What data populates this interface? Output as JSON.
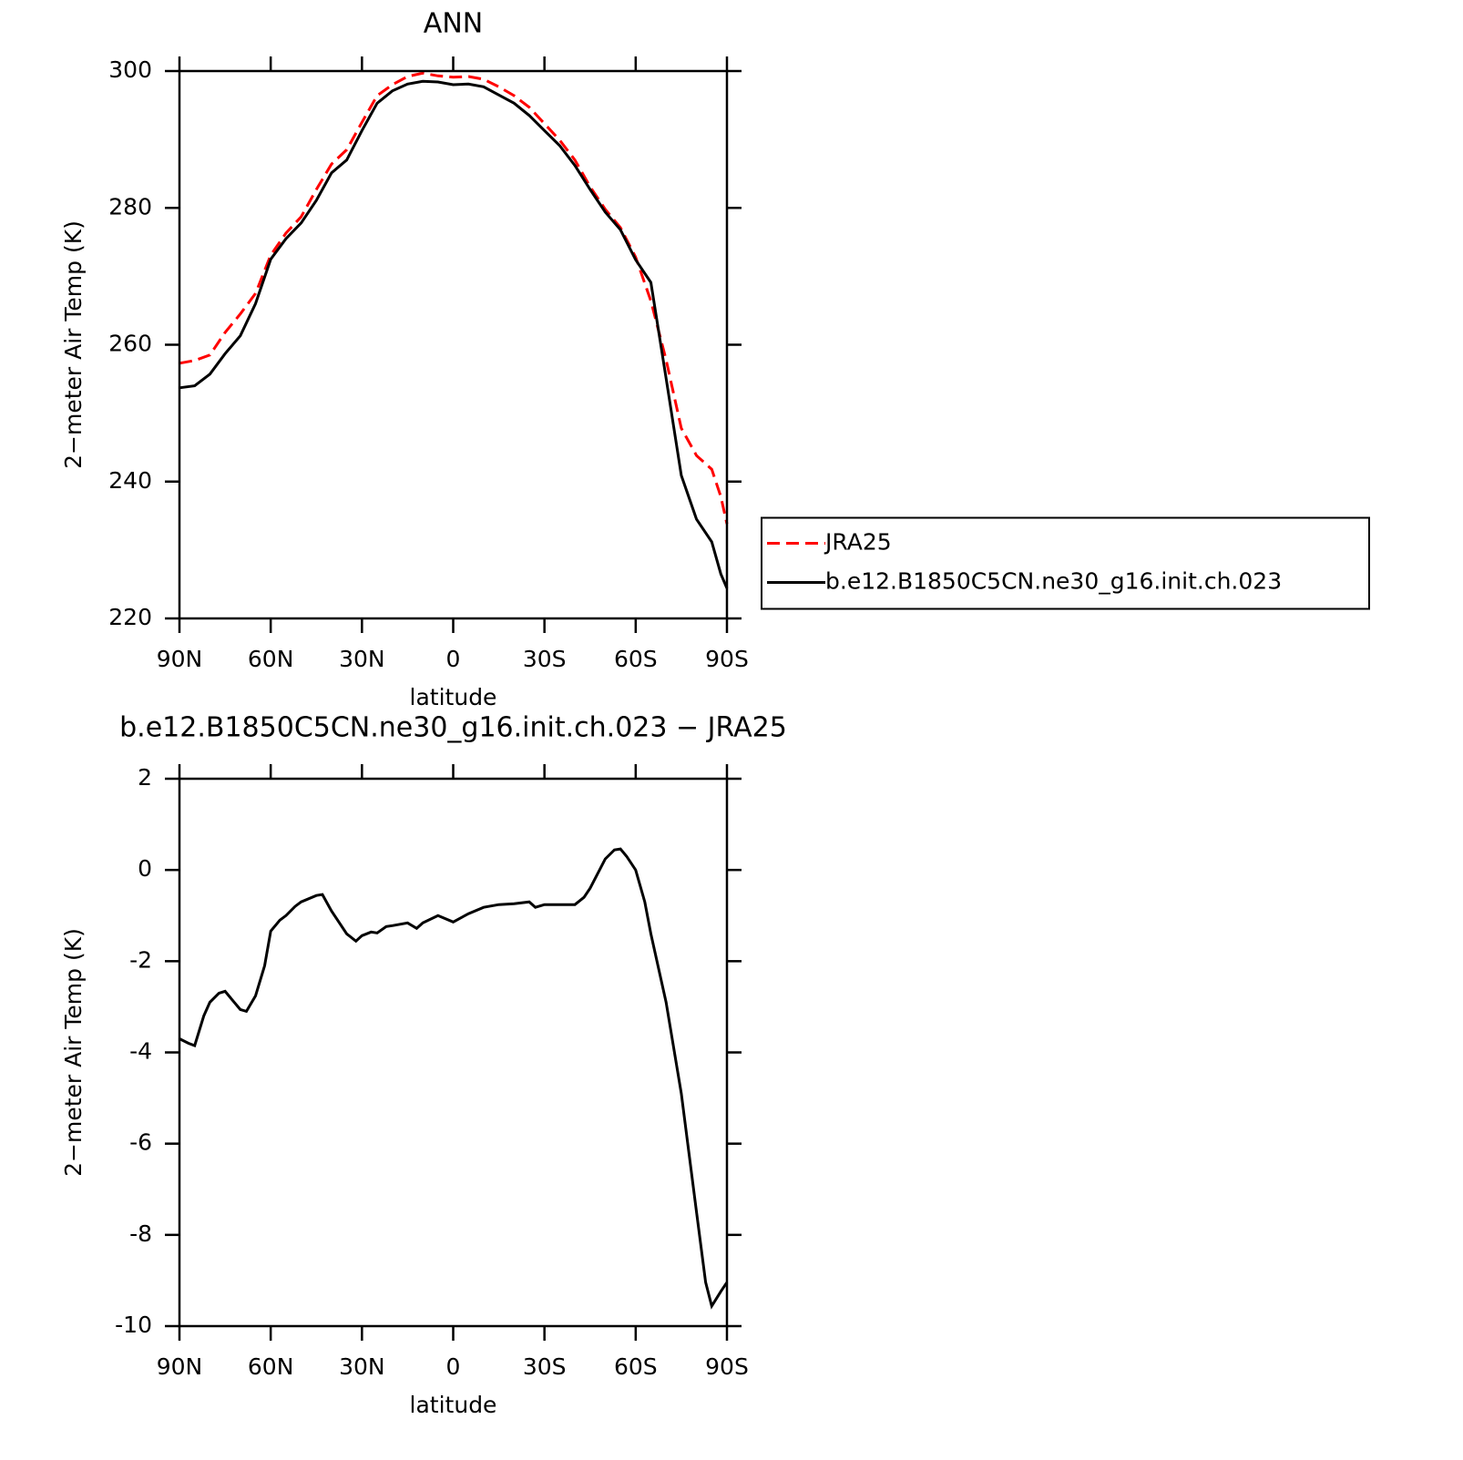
{
  "chart_data": [
    {
      "type": "line",
      "title": "ANN",
      "xlabel": "latitude",
      "ylabel": "2−meter Air Temp (K)",
      "x": [
        90,
        85,
        80,
        75,
        70,
        65,
        60,
        55,
        50,
        45,
        40,
        35,
        30,
        25,
        20,
        15,
        10,
        5,
        0,
        -5,
        -10,
        -15,
        -20,
        -25,
        -30,
        -35,
        -40,
        -45,
        -50,
        -55,
        -60,
        -65,
        -70,
        -75,
        -80,
        -85,
        -88,
        -90
      ],
      "series": [
        {
          "name": "JRA25",
          "color": "#ff0000",
          "dash": "dashed",
          "values": [
            257.3,
            257.7,
            258.5,
            261.8,
            264.5,
            267.5,
            273.1,
            276.3,
            278.7,
            282.7,
            286.4,
            288.5,
            292.5,
            296.4,
            298.0,
            299.2,
            299.7,
            299.3,
            299.1,
            299.2,
            298.8,
            297.7,
            296.4,
            294.7,
            292.3,
            289.9,
            287.0,
            283.1,
            279.8,
            277.1,
            272.8,
            266.4,
            257.8,
            247.8,
            243.8,
            241.8,
            237.8,
            233.8
          ]
        },
        {
          "name": "b.e12.B1850C5CN.ne30_g16.init.ch.023",
          "color": "#000000",
          "dash": "solid",
          "values": [
            253.7,
            254.0,
            255.7,
            258.7,
            261.3,
            266.0,
            272.5,
            275.5,
            277.8,
            281.1,
            285.1,
            287.0,
            291.3,
            295.3,
            297.1,
            298.1,
            298.5,
            298.4,
            298.0,
            298.1,
            297.7,
            296.5,
            295.3,
            293.5,
            291.3,
            289.1,
            286.2,
            282.7,
            279.4,
            276.8,
            272.4,
            269.1,
            255.1,
            240.9,
            234.5,
            231.2,
            226.5,
            224.4
          ]
        }
      ],
      "xlim": [
        90,
        -90
      ],
      "xticks": [
        {
          "value": 90,
          "label": "90N"
        },
        {
          "value": 60,
          "label": "60N"
        },
        {
          "value": 30,
          "label": "30N"
        },
        0,
        {
          "value": -30,
          "label": "30S"
        },
        {
          "value": -60,
          "label": "60S"
        },
        {
          "value": -90,
          "label": "90S"
        }
      ],
      "ylim": [
        220,
        300
      ],
      "yticks": [
        220,
        240,
        260,
        280,
        300
      ],
      "legend": "right"
    },
    {
      "type": "line",
      "title": "b.e12.B1850C5CN.ne30_g16.init.ch.023 − JRA25",
      "xlabel": "latitude",
      "ylabel": "2−meter Air Temp (K)",
      "x": [
        90,
        87,
        85,
        82,
        80,
        77,
        75,
        72,
        70,
        68,
        65,
        62,
        60,
        57,
        55,
        52,
        50,
        45,
        43,
        40,
        35,
        32,
        30,
        27,
        25,
        22,
        20,
        15,
        12,
        10,
        5,
        0,
        -5,
        -10,
        -15,
        -20,
        -25,
        -27,
        -30,
        -35,
        -40,
        -43,
        -45,
        -50,
        -53,
        -55,
        -57,
        -60,
        -63,
        -65,
        -70,
        -75,
        -80,
        -83,
        -85,
        -88,
        -90
      ],
      "color": "#000000",
      "values": [
        -3.7,
        -3.8,
        -3.85,
        -3.2,
        -2.9,
        -2.7,
        -2.66,
        -2.9,
        -3.06,
        -3.1,
        -2.76,
        -2.1,
        -1.34,
        -1.1,
        -1.0,
        -0.8,
        -0.7,
        -0.56,
        -0.54,
        -0.9,
        -1.4,
        -1.56,
        -1.44,
        -1.36,
        -1.38,
        -1.24,
        -1.22,
        -1.16,
        -1.28,
        -1.16,
        -1.0,
        -1.14,
        -0.96,
        -0.82,
        -0.76,
        -0.74,
        -0.7,
        -0.82,
        -0.76,
        -0.76,
        -0.76,
        -0.6,
        -0.4,
        0.24,
        0.44,
        0.46,
        0.3,
        0.0,
        -0.7,
        -1.4,
        -2.9,
        -4.9,
        -7.5,
        -9.04,
        -9.56,
        -9.24,
        -9.04
      ],
      "xlim": [
        90,
        -90
      ],
      "xticks": [
        {
          "value": 90,
          "label": "90N"
        },
        {
          "value": 60,
          "label": "60N"
        },
        {
          "value": 30,
          "label": "30N"
        },
        0,
        {
          "value": -30,
          "label": "30S"
        },
        {
          "value": -60,
          "label": "60S"
        },
        {
          "value": -90,
          "label": "90S"
        }
      ],
      "ylim": [
        -10,
        2
      ],
      "yticks": [
        -10,
        -8,
        -6,
        -4,
        -2,
        0,
        2
      ]
    }
  ]
}
